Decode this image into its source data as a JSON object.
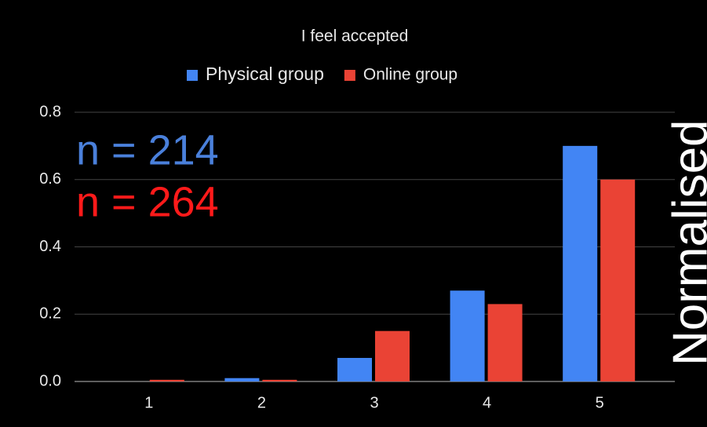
{
  "chart_data": {
    "type": "bar",
    "title": "I feel accepted",
    "categories": [
      "1",
      "2",
      "3",
      "4",
      "5"
    ],
    "series": [
      {
        "name": "Physical group",
        "color": "#4285f4",
        "values": [
          0,
          0.01,
          0.07,
          0.27,
          0.7
        ]
      },
      {
        "name": "Online group",
        "color": "#ea4335",
        "values": [
          0.005,
          0.005,
          0.15,
          0.23,
          0.6
        ]
      }
    ],
    "ylim": [
      0,
      0.8
    ],
    "yticks": [
      {
        "value": 0,
        "label": "0.0"
      },
      0.2,
      0.4,
      0.6,
      0.8
    ],
    "grid": true,
    "legend": "top",
    "annotations": [
      {
        "text": "n = 214",
        "color": "#4a80db"
      },
      {
        "text": "n = 264",
        "color": "#ff1a1a"
      }
    ],
    "side_label": "Normalised"
  }
}
